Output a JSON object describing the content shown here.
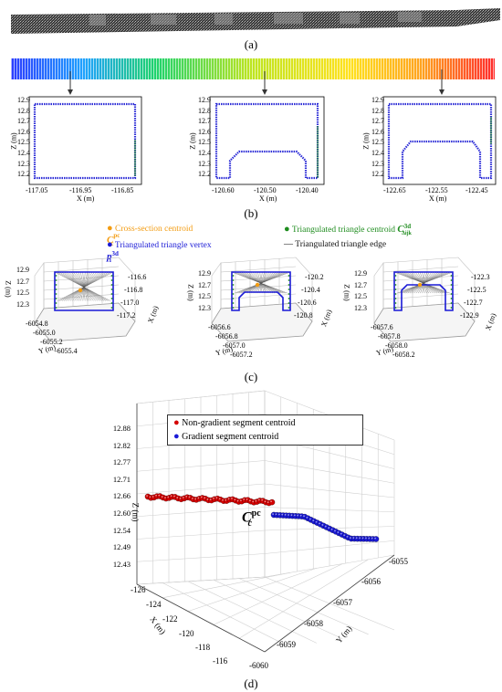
{
  "panels": {
    "a": {
      "label": "(a)"
    },
    "b": {
      "label": "(b)",
      "subplots": [
        {
          "x_ticks": [
            "-117.05",
            "-116.95",
            "-116.85"
          ],
          "y_ticks": [
            "12.9",
            "12.8",
            "12.7",
            "12.6",
            "12.5",
            "12.4",
            "12.3",
            "12.2"
          ],
          "x_label": "X (m)",
          "y_label": "Z (m)"
        },
        {
          "x_ticks": [
            "-120.60",
            "-120.50",
            "-120.40"
          ],
          "y_ticks": [
            "12.9",
            "12.8",
            "12.7",
            "12.6",
            "12.5",
            "12.4",
            "12.3",
            "12.2"
          ],
          "x_label": "X (m)",
          "y_label": "Z (m)"
        },
        {
          "x_ticks": [
            "-122.65",
            "-122.55",
            "-122.45"
          ],
          "y_ticks": [
            "12.9",
            "12.8",
            "12.7",
            "12.6",
            "12.5",
            "12.4",
            "12.3",
            "12.2"
          ],
          "x_label": "X (m)",
          "y_label": "Z (m)"
        }
      ]
    },
    "c": {
      "label": "(c)",
      "legend": {
        "cross_section_centroid": "Cross-section centroid",
        "triangle_vertex": "Triangulated triangle vertex",
        "triangle_centroid": "Triangulated triangle centroid",
        "triangle_edge": "Triangulated triangle edge",
        "sym_cc": "C",
        "sym_cc_sup": "pc",
        "sym_cc_sub": "c",
        "sym_p": "p",
        "sym_p_sup": "3d",
        "sym_p_sub": "i",
        "sym_c3d": "C",
        "sym_c3d_sup": "3d",
        "sym_c3d_sub": "Δijk"
      },
      "subplots": [
        {
          "z_ticks": [
            "12.9",
            "12.7",
            "12.5",
            "12.3"
          ],
          "y_ticks": [
            "-6054.8",
            "-6055.0",
            "-6055.2",
            "-6055.4"
          ],
          "x_ticks": [
            "-116.6",
            "-116.8",
            "-117.0",
            "-117.2"
          ],
          "z_label": "Z (m)",
          "y_label": "Y (m)",
          "x_label": "X (m)"
        },
        {
          "z_ticks": [
            "12.9",
            "12.7",
            "12.5",
            "12.3"
          ],
          "y_ticks": [
            "-6056.6",
            "-6056.8",
            "-6057.0",
            "-6057.2"
          ],
          "x_ticks": [
            "-120.2",
            "-120.4",
            "-120.6",
            "-120.8"
          ],
          "z_label": "Z (m)",
          "y_label": "Y (m)",
          "x_label": "X (m)"
        },
        {
          "z_ticks": [
            "12.9",
            "12.7",
            "12.5",
            "12.3"
          ],
          "y_ticks": [
            "-6057.6",
            "-6057.8",
            "-6058.0",
            "-6058.2"
          ],
          "x_ticks": [
            "-122.3",
            "-122.5",
            "-122.7",
            "-122.9"
          ],
          "z_label": "Z (m)",
          "y_label": "Y (m)",
          "x_label": "X (m)"
        }
      ]
    },
    "d": {
      "label": "(d)",
      "legend": {
        "red": "Non-gradient segment centroid",
        "blue": "Gradient segment centroid"
      },
      "annotation": {
        "sym": "C",
        "sup": "pc",
        "sub": "c"
      },
      "z_ticks": [
        "12.88",
        "12.82",
        "12.77",
        "12.71",
        "12.66",
        "12.60",
        "12.54",
        "12.49",
        "12.43"
      ],
      "x_ticks": [
        "-126",
        "-124",
        "-122",
        "-120",
        "-118",
        "-116"
      ],
      "y_ticks": [
        "-6060",
        "-6059",
        "-6058",
        "-6057",
        "-6056",
        "-6055"
      ],
      "z_label": "Z (m)",
      "x_label": "X (m)",
      "y_label": "Y (m)"
    }
  },
  "chart_data": [
    {
      "type": "scatter",
      "series": [
        {
          "name": "Non-gradient segment centroid",
          "color": "#d40000",
          "points": 42
        },
        {
          "name": "Gradient segment centroid",
          "color": "#0000cc",
          "points": 34
        }
      ],
      "zlim": [
        12.43,
        12.88
      ],
      "xlim": [
        -126,
        -116
      ],
      "ylim": [
        -6060,
        -6055
      ]
    }
  ],
  "colors": {
    "red": "#d40000",
    "blue": "#1a1ad6",
    "green": "#1e8c1e",
    "orange": "#f39c12",
    "grid": "#cfcfcf"
  }
}
